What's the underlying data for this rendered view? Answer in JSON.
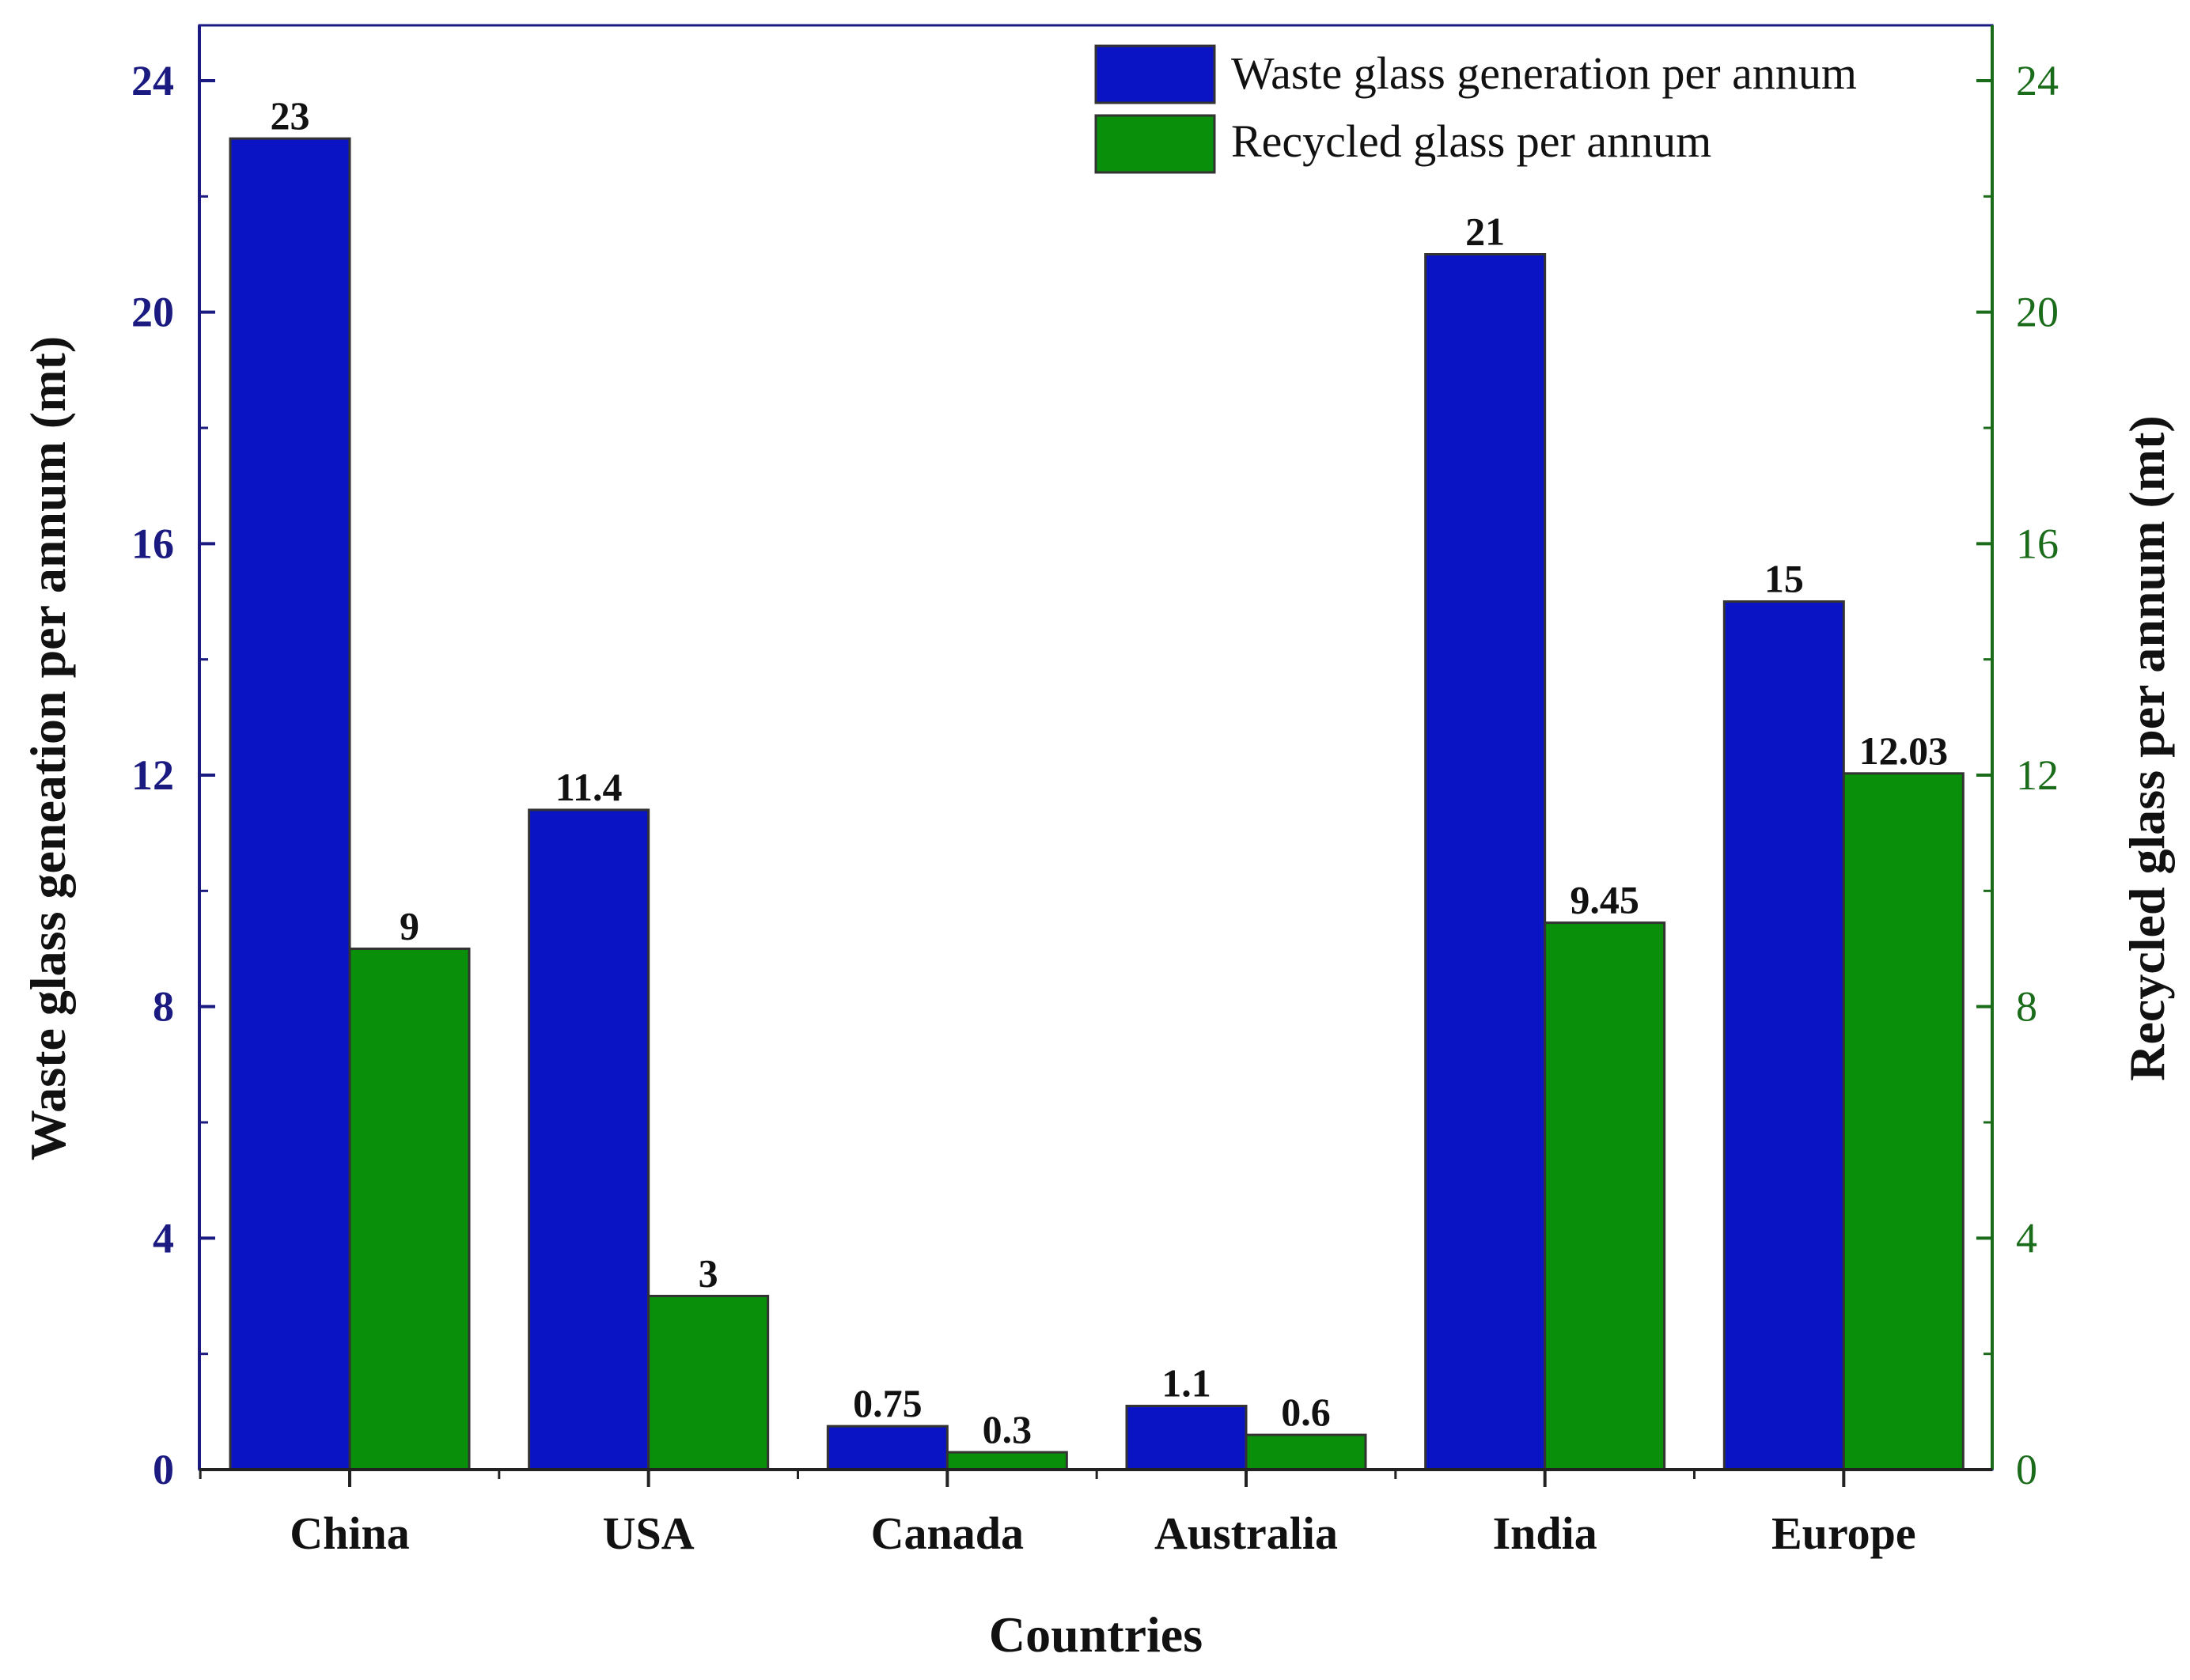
{
  "colors": {
    "series1": "#0a14c4",
    "series2": "#0a8f0a",
    "left_axis": "#1a1a80",
    "right_axis": "#1a6b1a",
    "frame": "#1a1a80",
    "text": "#111111"
  },
  "chart_data": {
    "type": "bar",
    "categories": [
      "China",
      "USA",
      "Canada",
      "Australia",
      "India",
      "Europe"
    ],
    "series": [
      {
        "name": "Waste glass generation per annum",
        "values": [
          23,
          11.4,
          0.75,
          1.1,
          21,
          15
        ],
        "labels": [
          "23",
          "11.4",
          "0.75",
          "1.1",
          "21",
          "15"
        ]
      },
      {
        "name": "Recycled glass per annum",
        "values": [
          9,
          3,
          0.3,
          0.6,
          9.45,
          12.03
        ],
        "labels": [
          "9",
          "3",
          "0.3",
          "0.6",
          "9.45",
          "12.03"
        ]
      }
    ],
    "xlabel": "Countries",
    "ylabel": "Waste glass geneation per annum (mt)",
    "y2label": "Recycled glass per annum (mt)",
    "ylim": [
      0,
      24
    ],
    "y2lim": [
      0,
      24
    ],
    "yticks": [
      0,
      4,
      8,
      12,
      16,
      20,
      24
    ],
    "y2ticks": [
      0,
      4,
      8,
      12,
      16,
      20,
      24
    ],
    "legend_position": "top-right",
    "grid": false
  }
}
